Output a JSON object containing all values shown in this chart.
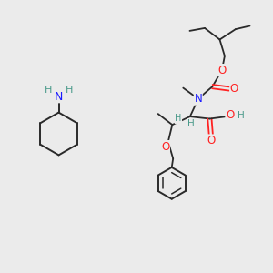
{
  "bg_color": "#ebebeb",
  "bond_color": "#2a2a2a",
  "atom_colors": {
    "N": "#1a1aff",
    "O": "#ff2222",
    "H": "#4a9a8a",
    "C": "#2a2a2a"
  },
  "figsize": [
    3.0,
    3.0
  ],
  "dpi": 100,
  "xlim": [
    0,
    10
  ],
  "ylim": [
    0,
    10
  ]
}
